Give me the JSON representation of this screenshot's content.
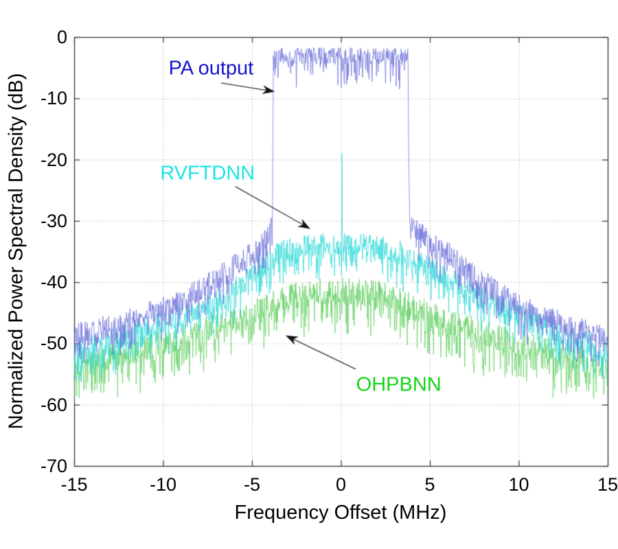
{
  "chart_data": {
    "type": "line",
    "title": "",
    "xlabel": "Frequency Offset (MHz)",
    "ylabel": "Normalized Power Spectral Density (dB)",
    "xlim": [
      -15,
      15
    ],
    "ylim": [
      -70,
      0
    ],
    "xtick_values": [
      -15,
      -10,
      -5,
      0,
      5,
      10,
      15
    ],
    "xtick_labels": [
      "-15",
      "-10",
      "-5",
      "0",
      "5",
      "10",
      "15"
    ],
    "ytick_values": [
      0,
      -10,
      -20,
      -30,
      -40,
      -50,
      -60,
      -70
    ],
    "ytick_labels": [
      "0",
      "-10",
      "-20",
      "-30",
      "-40",
      "-50",
      "-60",
      "-70"
    ],
    "grid": true,
    "grid_color": "#b5b5b5",
    "axis_color": "#333333",
    "legend": "none",
    "series": [
      {
        "name": "OHPBNN",
        "color": "#5ecf5e",
        "envelope": [
          [
            -15,
            -53.6
          ],
          [
            -14,
            -52.8
          ],
          [
            -13,
            -52.1
          ],
          [
            -12,
            -51.4
          ],
          [
            -11,
            -50.7
          ],
          [
            -10,
            -50.0
          ],
          [
            -9,
            -49.2
          ],
          [
            -8,
            -48.4
          ],
          [
            -7,
            -47.4
          ],
          [
            -6,
            -46.4
          ],
          [
            -5,
            -45.2
          ],
          [
            -4,
            -43.9
          ],
          [
            -3,
            -42.6
          ],
          [
            -2,
            -41.9
          ],
          [
            -1,
            -41.5
          ],
          [
            0,
            -41.4
          ],
          [
            1,
            -41.5
          ],
          [
            2,
            -41.9
          ],
          [
            3,
            -42.6
          ],
          [
            4,
            -43.9
          ],
          [
            5,
            -45.2
          ],
          [
            6,
            -46.4
          ],
          [
            7,
            -47.4
          ],
          [
            8,
            -48.4
          ],
          [
            9,
            -49.2
          ],
          [
            10,
            -50.0
          ],
          [
            11,
            -50.8
          ],
          [
            12,
            -51.5
          ],
          [
            13,
            -52.2
          ],
          [
            14,
            -52.9
          ],
          [
            15,
            -53.6
          ]
        ],
        "noise": {
          "amp_db": 2.2,
          "spike_prob": 0.28,
          "spike_depth_db": 5.5
        }
      },
      {
        "name": "RVFTDNN",
        "color": "#2cd8d8",
        "envelope": [
          [
            -15,
            -51.5
          ],
          [
            -14,
            -50.5
          ],
          [
            -13,
            -49.6
          ],
          [
            -12,
            -48.6
          ],
          [
            -11,
            -47.6
          ],
          [
            -10,
            -46.6
          ],
          [
            -9,
            -45.5
          ],
          [
            -8,
            -44.3
          ],
          [
            -7,
            -43.0
          ],
          [
            -6,
            -41.3
          ],
          [
            -5,
            -38.8
          ],
          [
            -4.5,
            -37.3
          ],
          [
            -4,
            -36.2
          ],
          [
            -3.5,
            -35.3
          ],
          [
            -3,
            -34.8
          ],
          [
            -2,
            -34.2
          ],
          [
            -1,
            -33.9
          ],
          [
            0,
            -33.8
          ],
          [
            1,
            -33.9
          ],
          [
            2,
            -34.2
          ],
          [
            3,
            -34.8
          ],
          [
            3.5,
            -35.3
          ],
          [
            4,
            -36.2
          ],
          [
            4.5,
            -37.0
          ],
          [
            5,
            -37.8
          ],
          [
            6,
            -39.3
          ],
          [
            7,
            -40.9
          ],
          [
            8,
            -42.5
          ],
          [
            9,
            -44.0
          ],
          [
            10,
            -45.4
          ],
          [
            11,
            -46.7
          ],
          [
            12,
            -47.8
          ],
          [
            13,
            -48.9
          ],
          [
            14,
            -50.0
          ],
          [
            15,
            -51.0
          ]
        ],
        "noise": {
          "amp_db": 1.9,
          "spike_prob": 0.25,
          "spike_depth_db": 4.6
        },
        "spikes": [
          {
            "x": 0.05,
            "top_db": -19
          }
        ]
      },
      {
        "name": "PA output",
        "color": "#6b6fd9",
        "envelope": [
          [
            -15,
            -48.5
          ],
          [
            -14,
            -47.8
          ],
          [
            -13,
            -47.0
          ],
          [
            -12,
            -46.0
          ],
          [
            -11,
            -45.2
          ],
          [
            -10,
            -44.3
          ],
          [
            -9,
            -42.9
          ],
          [
            -8,
            -41.4
          ],
          [
            -7,
            -39.4
          ],
          [
            -6,
            -37.4
          ],
          [
            -5,
            -35.3
          ],
          [
            -4.5,
            -34.0
          ],
          [
            -4.1,
            -32.3
          ],
          [
            -3.88,
            -30.5
          ],
          [
            -3.84,
            -26.0
          ],
          [
            -3.8,
            -3.1
          ],
          [
            3.78,
            -3.1
          ],
          [
            3.8,
            -17.0
          ],
          [
            3.83,
            -23.0
          ],
          [
            3.87,
            -30.3
          ],
          [
            4.2,
            -31.3
          ],
          [
            4.5,
            -32.0
          ],
          [
            5,
            -33.0
          ],
          [
            6,
            -35.3
          ],
          [
            7,
            -37.4
          ],
          [
            8,
            -39.8
          ],
          [
            9,
            -42.0
          ],
          [
            10,
            -43.8
          ],
          [
            11,
            -45.2
          ],
          [
            12,
            -46.2
          ],
          [
            13,
            -47.2
          ],
          [
            14,
            -48.2
          ],
          [
            15,
            -49.0
          ]
        ],
        "flat_top": {
          "from": -3.8,
          "to": 3.78,
          "level_db": -3.1,
          "bandwidth_mhz": 7.6
        },
        "noise": {
          "amp_db": 1.9,
          "spike_prob": 0.25,
          "spike_depth_db": 4.2
        },
        "noise_top": {
          "amp_db": 1.4,
          "spike_prob": 0.18,
          "spike_depth_db": 4.5
        }
      }
    ],
    "annotations": [
      {
        "id": "pa-output",
        "text": "PA output",
        "color": "#1414cc",
        "x": -7.3,
        "y": -5.2,
        "arrow": {
          "from": [
            -6.74,
            -7.5
          ],
          "to": [
            -3.72,
            -8.9
          ]
        }
      },
      {
        "id": "rvftdnn",
        "text": "RVFTDNN",
        "color": "#1ce4e4",
        "x": -7.5,
        "y": -22.3,
        "arrow": {
          "from": [
            -5.93,
            -24.4
          ],
          "to": [
            -1.72,
            -31.3
          ]
        }
      },
      {
        "id": "ohpbnn",
        "text": "OHPBNN",
        "color": "#15d615",
        "x": 3.25,
        "y": -56.8,
        "arrow": {
          "from": [
            0.83,
            -54.2
          ],
          "to": [
            -3.11,
            -48.7
          ]
        }
      }
    ]
  }
}
